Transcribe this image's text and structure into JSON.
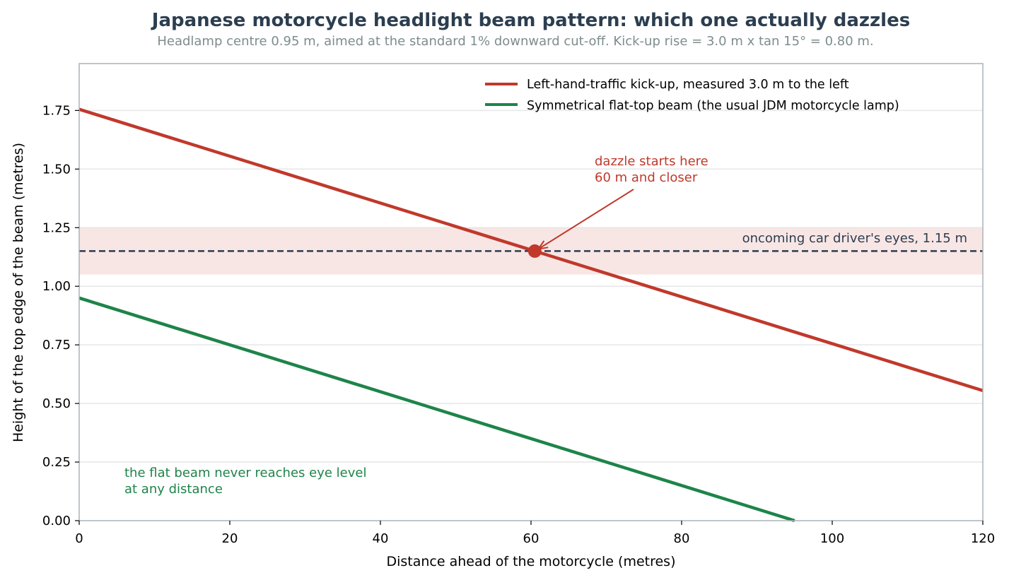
{
  "chart_data": {
    "type": "line",
    "title": "Japanese motorcycle headlight beam pattern: which one actually dazzles",
    "subtitle": "Headlamp centre 0.95 m, aimed at the standard 1% downward cut-off. Kick-up rise = 3.0 m x tan 15° = 0.80 m.",
    "xlabel": "Distance ahead of the motorcycle (metres)",
    "ylabel": "Height of the top edge of the beam (metres)",
    "xlim": [
      0,
      120
    ],
    "ylim": [
      0,
      1.95
    ],
    "xticks": [
      0,
      20,
      40,
      60,
      80,
      100,
      120
    ],
    "yticks": [
      0.0,
      0.25,
      0.5,
      0.75,
      1.0,
      1.25,
      1.5,
      1.75
    ],
    "xtick_labels": [
      "0",
      "20",
      "40",
      "60",
      "80",
      "100",
      "120"
    ],
    "ytick_labels": [
      "0.00",
      "0.25",
      "0.50",
      "0.75",
      "1.00",
      "1.25",
      "1.50",
      "1.75"
    ],
    "grid": "horizontal",
    "legend_position": "top-right",
    "series": [
      {
        "name": "Left-hand-traffic kick-up, measured 3.0 m to the left",
        "color": "#c0392b",
        "x": [
          0,
          120
        ],
        "y": [
          1.755,
          0.555
        ]
      },
      {
        "name": "Symmetrical flat-top beam (the usual JDM motorcycle lamp)",
        "color": "#1e8449",
        "x": [
          0,
          95
        ],
        "y": [
          0.95,
          0.0
        ]
      }
    ],
    "eye_level": {
      "value": 1.15,
      "band": [
        1.05,
        1.25
      ],
      "label": "oncoming car driver's eyes, 1.15 m",
      "line_color": "#2c3e50",
      "band_color": "#f8e6e5"
    },
    "crossing_point": {
      "x": 60.5,
      "y": 1.15,
      "color": "#c0392b"
    },
    "annotations": [
      {
        "lines": [
          "dazzle starts here",
          "60 m and closer"
        ],
        "color": "#c0392b"
      },
      {
        "lines": [
          "the flat beam never reaches eye level",
          "at any distance"
        ],
        "color": "#1e8449"
      }
    ]
  }
}
